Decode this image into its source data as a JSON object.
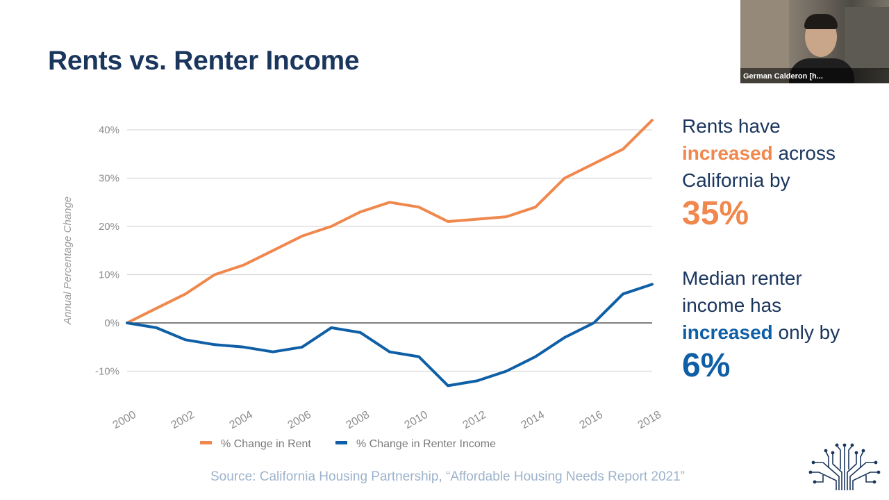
{
  "slide": {
    "title": "Rents vs. Renter Income",
    "source": "Source: California Housing Partnership, “Affordable Housing Needs Report 2021”"
  },
  "callouts": {
    "rent": {
      "line1": "Rents have",
      "highlight": "increased",
      "line2_rest": " across",
      "line3": "California by",
      "big_value": "35%"
    },
    "income": {
      "line1": "Median renter",
      "line2": "income has",
      "highlight": "increased",
      "line3_rest": " only by",
      "big_value": "6%"
    }
  },
  "webcam": {
    "participant_name": "German Calderon [h..."
  },
  "chart_data": {
    "type": "line",
    "title": "",
    "xlabel": "",
    "ylabel": "Annual Percentage Change",
    "x": [
      2000,
      2001,
      2002,
      2003,
      2004,
      2005,
      2006,
      2007,
      2008,
      2009,
      2010,
      2011,
      2012,
      2013,
      2014,
      2015,
      2016,
      2017,
      2018
    ],
    "x_ticks": [
      "2000",
      "2002",
      "2004",
      "2006",
      "2008",
      "2010",
      "2012",
      "2014",
      "2016",
      "2018"
    ],
    "y_ticks": [
      "-10%",
      "0%",
      "10%",
      "20%",
      "30%",
      "40%"
    ],
    "y_tick_values": [
      -10,
      0,
      10,
      20,
      30,
      40
    ],
    "ylim": [
      -13,
      42
    ],
    "grid": true,
    "legend_position": "bottom",
    "series": [
      {
        "name": "% Change in Rent",
        "color": "#f0884e",
        "values": [
          0,
          3,
          6,
          10,
          12,
          15,
          18,
          20,
          23,
          25,
          24,
          21,
          21.5,
          22,
          24,
          30,
          33,
          36,
          42
        ]
      },
      {
        "name": "% Change in Renter Income",
        "color": "#0f5fa6",
        "values": [
          0,
          -1,
          -3.5,
          -4.5,
          -5,
          -6,
          -5,
          -1,
          -2,
          -6,
          -7,
          -13,
          -12,
          -10,
          -7,
          -3,
          0,
          6,
          8
        ]
      }
    ]
  }
}
